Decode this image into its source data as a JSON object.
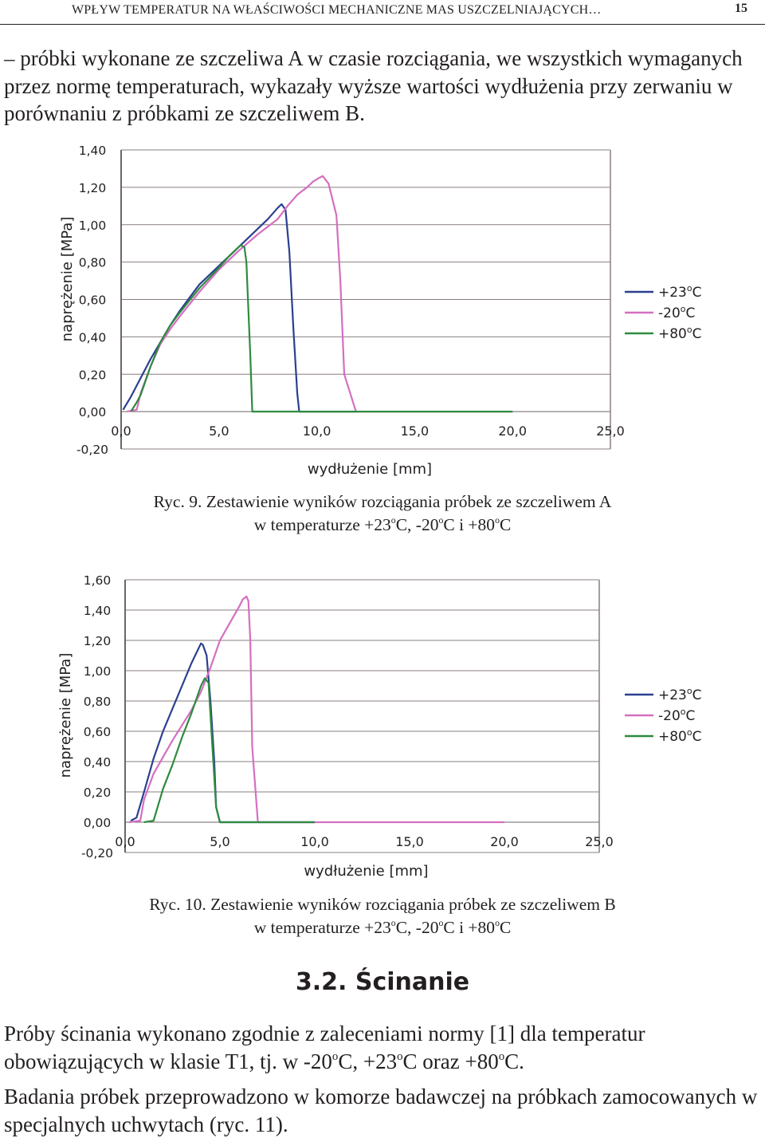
{
  "header": {
    "running_title": "WPŁYW TEMPERATUR NA WŁAŚCIWOŚCI MECHANICZNE MAS USZCZELNIAJĄCYCH…",
    "page_number": "15"
  },
  "intro_paragraph": "– próbki wykonane ze szczeliwa A w czasie rozciągania, we wszystkich wymaganych przez normę temperaturach, wykazały wyższe wartości wydłużenia przy zerwaniu w porównaniu z próbkami ze szczeliwem B.",
  "figures": [
    {
      "caption_line1": "Ryc. 9. Zestawienie wyników rozciągania próbek ze szczeliwem A",
      "caption_line2_prefix": "w temperaturze +23",
      "caption_line2_mid1": "C, -20",
      "caption_line2_mid2": "C i +80",
      "caption_line2_end": "C",
      "deg": "o"
    },
    {
      "caption_line1": "Ryc. 10. Zestawienie wyników rozciągania próbek ze szczeliwem B",
      "caption_line2_prefix": "w temperaturze +23",
      "caption_line2_mid1": "C, -20",
      "caption_line2_mid2": "C i +80",
      "caption_line2_end": "C",
      "deg": "o"
    }
  ],
  "section": {
    "heading": "3.2. Ścinanie"
  },
  "paragraph_2": {
    "text_a": "Próby ścinania wykonano zgodnie z zaleceniami normy [1] dla temperatur obowiązujących w klasie T1, tj. w -20",
    "text_b": "C, +23",
    "text_c": "C oraz +80",
    "text_d": "C.",
    "deg": "o"
  },
  "paragraph_3": "Badania próbek przeprowadzono w komorze badawczej na próbkach zamocowanych w specjalnych uchwytach (ryc. 11).",
  "chart_data": [
    {
      "type": "line",
      "title": "",
      "xlabel": "wydłużenie [mm]",
      "ylabel": "naprężenie [MPa]",
      "xlim": [
        0,
        25
      ],
      "ylim": [
        -0.2,
        1.4
      ],
      "x_ticks": [
        "0,0",
        "5,0",
        "10,0",
        "15,0",
        "20,0",
        "25,0"
      ],
      "x_tick_values": [
        0,
        5,
        10,
        15,
        20,
        25
      ],
      "y_ticks": [
        "-0,20",
        "0,00",
        "0,20",
        "0,40",
        "0,60",
        "0,80",
        "1,00",
        "1,20",
        "1,40"
      ],
      "y_tick_values": [
        -0.2,
        0,
        0.2,
        0.4,
        0.6,
        0.8,
        1.0,
        1.2,
        1.4
      ],
      "grid": "horizontal",
      "legend_position": "right",
      "series": [
        {
          "name": "+23°C",
          "legend_temp": "+23",
          "legend_unit": "C",
          "color": "#2b3f8f",
          "x": [
            0.1,
            0.5,
            1.0,
            1.5,
            2.0,
            2.5,
            3.0,
            4.0,
            5.0,
            6.0,
            7.0,
            7.5,
            8.0,
            8.2,
            8.4,
            8.6,
            8.8,
            9.0,
            9.1,
            10.0,
            12.0
          ],
          "y": [
            0.01,
            0.08,
            0.18,
            0.28,
            0.37,
            0.46,
            0.54,
            0.68,
            0.78,
            0.88,
            0.98,
            1.03,
            1.09,
            1.11,
            1.08,
            0.85,
            0.45,
            0.1,
            0.0,
            0.0,
            0.0
          ]
        },
        {
          "name": "-20°C",
          "legend_temp": "-20",
          "legend_unit": "C",
          "color": "#d46fc0",
          "x": [
            0.3,
            0.8,
            1.0,
            1.5,
            2.0,
            2.5,
            3.0,
            4.0,
            5.0,
            6.0,
            7.0,
            8.0,
            8.5,
            9.0,
            9.5,
            9.8,
            10.1,
            10.3,
            10.6,
            11.0,
            11.2,
            11.4,
            12.0,
            15.0,
            20.0
          ],
          "y": [
            0.0,
            0.01,
            0.1,
            0.24,
            0.36,
            0.44,
            0.51,
            0.64,
            0.76,
            0.86,
            0.95,
            1.03,
            1.1,
            1.16,
            1.2,
            1.23,
            1.25,
            1.26,
            1.22,
            1.05,
            0.7,
            0.2,
            0.0,
            0.0,
            0.0
          ]
        },
        {
          "name": "+80°C",
          "legend_temp": "+80",
          "legend_unit": "C",
          "color": "#2e8b3e",
          "x": [
            0.5,
            0.8,
            1.0,
            1.5,
            2.0,
            2.5,
            3.0,
            4.0,
            5.0,
            5.5,
            5.9,
            6.1,
            6.3,
            6.4,
            6.6,
            6.7,
            10.0,
            15.0,
            20.0
          ],
          "y": [
            0.0,
            0.05,
            0.09,
            0.24,
            0.37,
            0.46,
            0.53,
            0.66,
            0.77,
            0.83,
            0.87,
            0.89,
            0.88,
            0.8,
            0.3,
            0.0,
            0.0,
            0.0,
            0.0
          ]
        }
      ]
    },
    {
      "type": "line",
      "title": "",
      "xlabel": "wydłużenie [mm]",
      "ylabel": "naprężenie [MPa]",
      "xlim": [
        0,
        25
      ],
      "ylim": [
        -0.2,
        1.6
      ],
      "x_ticks": [
        "0,0",
        "5,0",
        "10,0",
        "15,0",
        "20,0",
        "25,0"
      ],
      "x_tick_values": [
        0,
        5,
        10,
        15,
        20,
        25
      ],
      "y_ticks": [
        "-0,20",
        "0,00",
        "0,20",
        "0,40",
        "0,60",
        "0,80",
        "1,00",
        "1,20",
        "1,40",
        "1,60"
      ],
      "y_tick_values": [
        -0.2,
        0,
        0.2,
        0.4,
        0.6,
        0.8,
        1.0,
        1.2,
        1.4,
        1.6
      ],
      "grid": "horizontal",
      "legend_position": "right",
      "series": [
        {
          "name": "+23°C",
          "legend_temp": "+23",
          "legend_unit": "C",
          "color": "#2b3f8f",
          "x": [
            0.3,
            0.6,
            1.0,
            1.5,
            2.0,
            2.5,
            3.0,
            3.5,
            4.0,
            4.1,
            4.3,
            4.5,
            4.7,
            4.8,
            5.0,
            10.0
          ],
          "y": [
            0.01,
            0.03,
            0.2,
            0.42,
            0.6,
            0.75,
            0.9,
            1.05,
            1.18,
            1.17,
            1.1,
            0.8,
            0.4,
            0.1,
            0.0,
            0.0
          ]
        },
        {
          "name": "-20°C",
          "legend_temp": "-20",
          "legend_unit": "C",
          "color": "#d46fc0",
          "x": [
            0.2,
            0.8,
            1.0,
            1.5,
            2.0,
            2.5,
            3.0,
            3.5,
            4.0,
            4.5,
            5.0,
            5.5,
            6.0,
            6.2,
            6.4,
            6.5,
            6.6,
            6.7,
            7.0,
            10.0,
            15.0,
            20.0
          ],
          "y": [
            0.0,
            0.01,
            0.15,
            0.32,
            0.43,
            0.54,
            0.64,
            0.74,
            0.86,
            1.02,
            1.2,
            1.31,
            1.42,
            1.47,
            1.49,
            1.46,
            1.2,
            0.5,
            0.0,
            0.0,
            0.0,
            0.0
          ]
        },
        {
          "name": "+80°C",
          "legend_temp": "+80",
          "legend_unit": "C",
          "color": "#2e8b3e",
          "x": [
            1.0,
            1.5,
            2.0,
            2.5,
            3.0,
            3.5,
            4.0,
            4.2,
            4.4,
            4.6,
            4.8,
            5.0,
            6.0,
            10.0
          ],
          "y": [
            0.0,
            0.01,
            0.22,
            0.38,
            0.56,
            0.72,
            0.9,
            0.95,
            0.92,
            0.5,
            0.1,
            0.0,
            0.0,
            0.0
          ]
        }
      ]
    }
  ]
}
